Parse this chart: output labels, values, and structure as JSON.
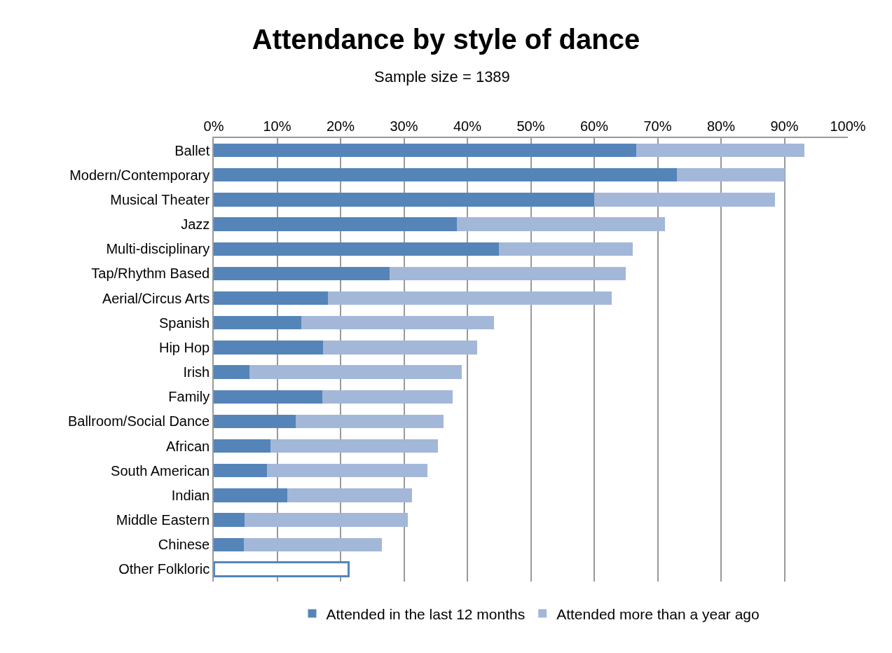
{
  "chart_data": {
    "type": "bar",
    "orientation": "horizontal",
    "stacked": true,
    "title": "Attendance by style of dance",
    "subtitle": "Sample size = 1389",
    "categories": [
      "Ballet",
      "Modern/Contemporary",
      "Musical Theater",
      "Jazz",
      "Multi-disciplinary",
      "Tap/Rhythm Based",
      "Aerial/Circus Arts",
      "Spanish",
      "Hip Hop",
      "Irish",
      "Family",
      "Ballroom/Social Dance",
      "African",
      "South American",
      "Indian",
      "Middle Eastern",
      "Chinese",
      "Other Folkloric"
    ],
    "series": [
      {
        "name": "Attended in the last 12 months",
        "color": "#5585b8",
        "colors": [
          "#5585b8",
          "#5585b8",
          "#5585b8",
          "#5585b8",
          "#5585b8",
          "#5585b8",
          "#5585b8",
          "#5585b8",
          "#5585b8",
          "#5585b8",
          "#5585b8",
          "#5585b8",
          "#5585b8",
          "#5585b8",
          "#5585b8",
          "#5585b8",
          "#5585b8",
          "#ffffff"
        ],
        "values": [
          66.6,
          73.0,
          60.0,
          38.3,
          45.0,
          27.7,
          18.0,
          13.8,
          17.2,
          5.6,
          17.1,
          12.9,
          9.0,
          8.4,
          11.6,
          4.9,
          4.7,
          21.3
        ]
      },
      {
        "name": "Attended more than a year ago",
        "color": "#a3b7d9",
        "values": [
          26.5,
          17.1,
          28.5,
          32.9,
          21.1,
          37.3,
          44.8,
          30.4,
          24.3,
          33.5,
          20.6,
          23.3,
          26.4,
          25.3,
          19.7,
          25.7,
          21.8,
          null
        ]
      }
    ],
    "xlim": [
      0,
      100
    ],
    "xticks": [
      {
        "value": 0,
        "label": "0%"
      },
      {
        "value": 10,
        "label": "10%"
      },
      {
        "value": 20,
        "label": "20%"
      },
      {
        "value": 30,
        "label": "30%"
      },
      {
        "value": 40,
        "label": "40%"
      },
      {
        "value": 50,
        "label": "50%"
      },
      {
        "value": 60,
        "label": "60%"
      },
      {
        "value": 70,
        "label": "70%"
      },
      {
        "value": 80,
        "label": "80%"
      },
      {
        "value": 90,
        "label": "90%"
      },
      {
        "value": 100,
        "label": "100%"
      }
    ],
    "grid": "x",
    "legend": "bottom"
  }
}
